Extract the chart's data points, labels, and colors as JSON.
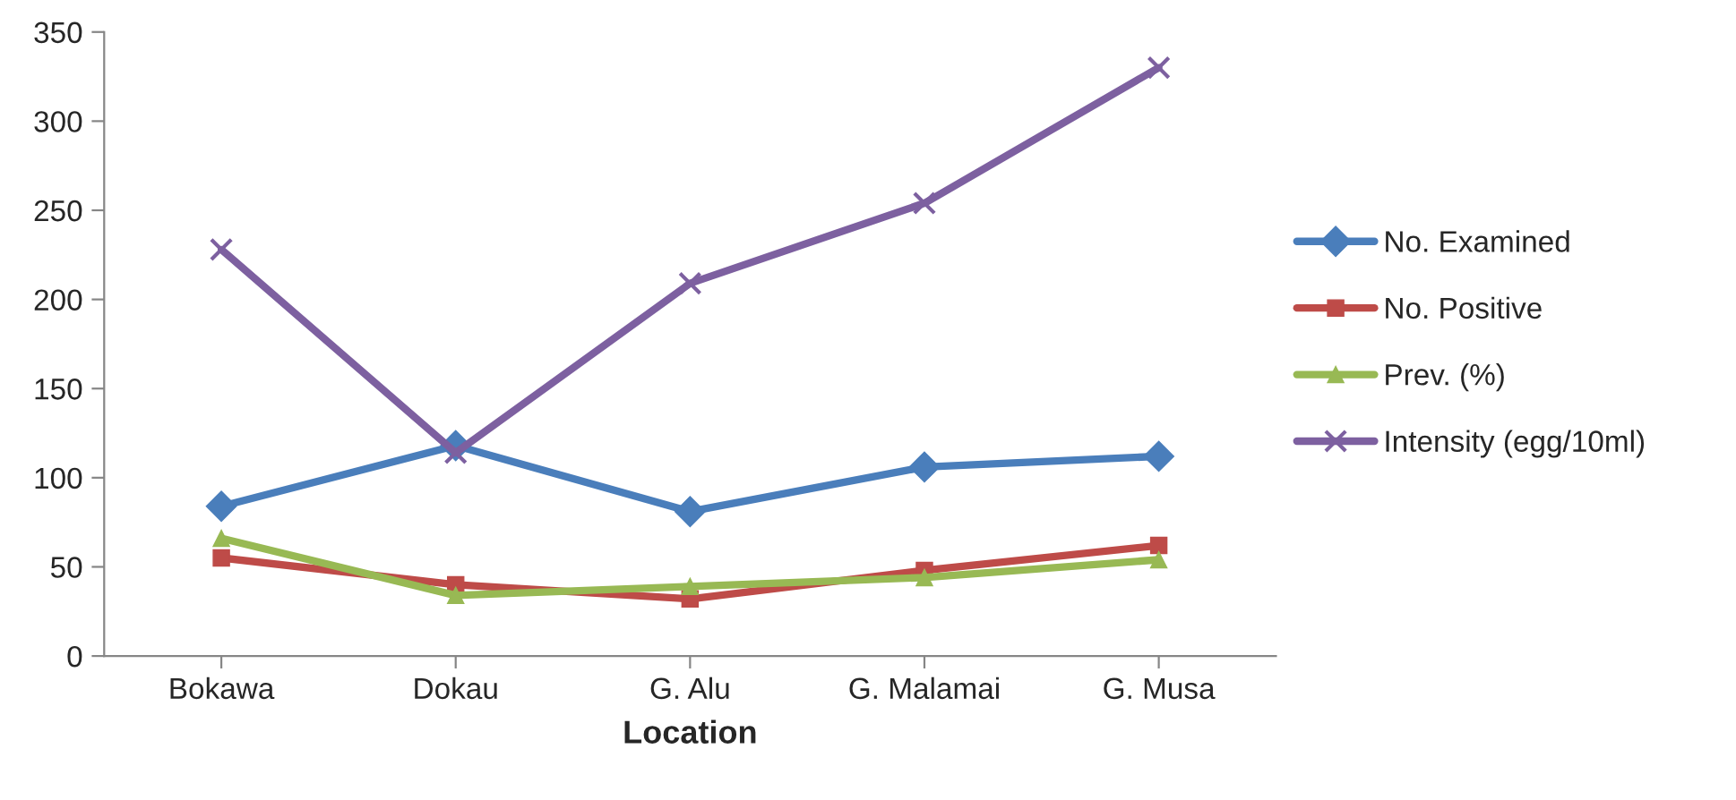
{
  "chart_data": {
    "type": "line",
    "xlabel": "Location",
    "categories": [
      "Bokawa",
      "Dokau",
      "G. Alu",
      "G. Malamai",
      "G. Musa"
    ],
    "series": [
      {
        "name": "No. Examined",
        "color": "#4a7ebb",
        "marker": "diamond",
        "values": [
          84,
          118,
          81,
          106,
          112
        ]
      },
      {
        "name": "No. Positive",
        "color": "#be4b48",
        "marker": "square",
        "values": [
          55,
          40,
          32,
          48,
          62
        ]
      },
      {
        "name": "Prev. (%)",
        "color": "#98b954",
        "marker": "triangle",
        "values": [
          66,
          34,
          39,
          44,
          54
        ]
      },
      {
        "name": "Intensity (egg/10ml)",
        "color": "#7d60a0",
        "marker": "cross",
        "values": [
          228,
          114,
          209,
          254,
          330
        ]
      }
    ],
    "ylim": [
      0,
      350
    ],
    "yticks": [
      0,
      50,
      100,
      150,
      200,
      250,
      300,
      350
    ],
    "grid": false,
    "legend": "right",
    "line_style": "solid"
  }
}
